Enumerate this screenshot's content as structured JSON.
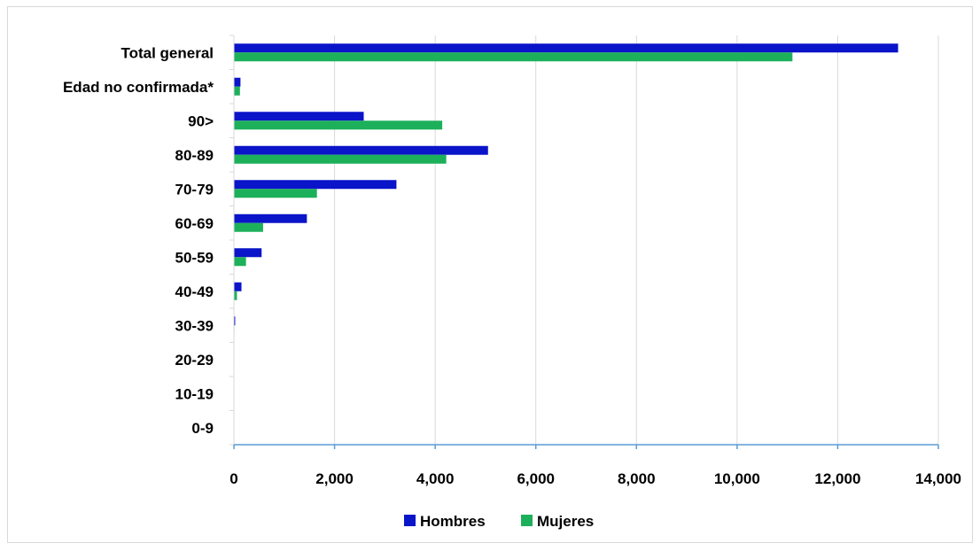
{
  "chart_data": {
    "type": "bar",
    "orientation": "horizontal",
    "categories": [
      "0-9",
      "10-19",
      "20-29",
      "30-39",
      "40-49",
      "50-59",
      "60-69",
      "70-79",
      "80-89",
      "90>",
      "Edad no confirmada*",
      "Total general"
    ],
    "series": [
      {
        "name": "Hombres",
        "color": "#0a14c8",
        "values": [
          0,
          2,
          5,
          25,
          150,
          550,
          1450,
          3230,
          5050,
          2580,
          130,
          13200
        ]
      },
      {
        "name": "Mujeres",
        "color": "#1db05a",
        "values": [
          0,
          1,
          3,
          10,
          60,
          240,
          580,
          1650,
          4220,
          4140,
          120,
          11100
        ]
      }
    ],
    "xlim": [
      0,
      14000
    ],
    "xticks": [
      "0",
      "2,000",
      "4,000",
      "6,000",
      "8,000",
      "10,000",
      "12,000",
      "14,000"
    ],
    "grid": "vertical",
    "legend": "bottom"
  }
}
